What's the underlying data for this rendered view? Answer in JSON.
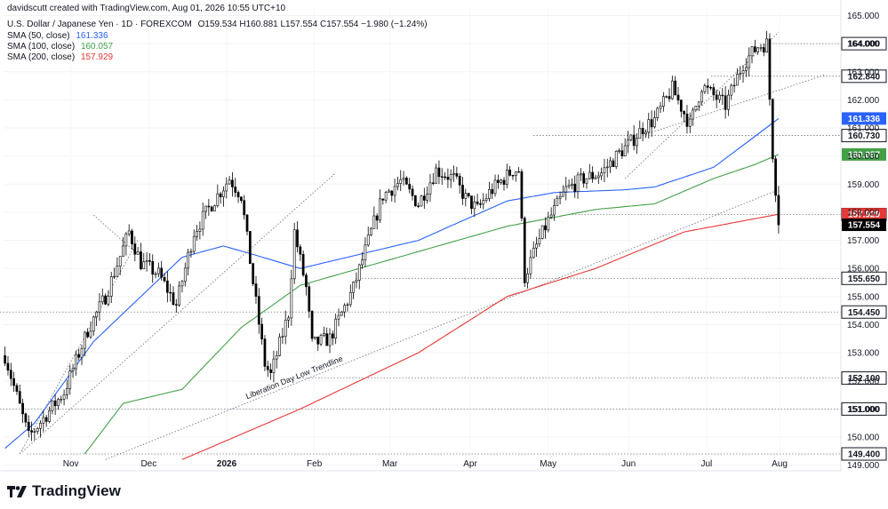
{
  "header": {
    "credit": "davidscutt created with TradingView.com, Aug 01, 2026 10:55 UTC+10",
    "instrument": "U.S. Dollar / Japanese Yen · 1D · FOREXCOM",
    "ohlc": "O159.534  H160.881  L157.554  C157.554  −1.980 (−1.24%)",
    "sma": [
      {
        "label": "SMA (50, close)",
        "value": "161.336",
        "color": "#2962ff"
      },
      {
        "label": "SMA (100, close)",
        "value": "160.057",
        "color": "#43a047"
      },
      {
        "label": "SMA (200, close)",
        "value": "157.929",
        "color": "#e53935"
      }
    ]
  },
  "logo": {
    "text": "TradingView"
  },
  "chart_data": {
    "type": "candlestick",
    "ylim": [
      148.8,
      165.3
    ],
    "y_ticks": [
      "165.000",
      "164.000",
      "163.000",
      "162.000",
      "161.000",
      "160.000",
      "159.000",
      "158.000",
      "157.000",
      "156.000",
      "155.000",
      "154.000",
      "153.000",
      "152.000",
      "151.000",
      "150.000",
      "149.000"
    ],
    "x_ticks": [
      "Nov",
      "Dec",
      "2026",
      "Feb",
      "Mar",
      "Apr",
      "May",
      "Jun",
      "Jul",
      "Aug"
    ],
    "levels": [
      "164.000",
      "162.840",
      "160.730",
      "157.920",
      "155.650",
      "154.450",
      "152.100",
      "151.000",
      "149.400"
    ],
    "price_label": "157.554",
    "annotation": "Liberation Day Low Trendline",
    "anchors": [
      [
        0,
        152.9
      ],
      [
        8,
        150.0
      ],
      [
        20,
        151.6
      ],
      [
        28,
        153.8
      ],
      [
        34,
        155.0
      ],
      [
        42,
        157.3
      ],
      [
        46,
        156.2
      ],
      [
        52,
        155.8
      ],
      [
        58,
        154.7
      ],
      [
        64,
        157.3
      ],
      [
        70,
        158.3
      ],
      [
        76,
        159.2
      ],
      [
        80,
        158.6
      ],
      [
        84,
        155.5
      ],
      [
        88,
        152.6
      ],
      [
        90,
        152.2
      ],
      [
        96,
        154.4
      ],
      [
        98,
        157.3
      ],
      [
        102,
        155.3
      ],
      [
        104,
        153.3
      ],
      [
        110,
        153.5
      ],
      [
        118,
        155.3
      ],
      [
        124,
        157.3
      ],
      [
        128,
        158.6
      ],
      [
        134,
        159.1
      ],
      [
        140,
        158.3
      ],
      [
        146,
        159.5
      ],
      [
        152,
        159.2
      ],
      [
        156,
        158.5
      ],
      [
        160,
        158.1
      ],
      [
        164,
        158.7
      ],
      [
        168,
        159.1
      ],
      [
        172,
        159.5
      ],
      [
        174,
        159.5
      ],
      [
        176,
        155.7
      ],
      [
        180,
        156.8
      ],
      [
        184,
        157.7
      ],
      [
        190,
        158.8
      ],
      [
        196,
        159.2
      ],
      [
        202,
        159.4
      ],
      [
        208,
        160.1
      ],
      [
        212,
        160.5
      ],
      [
        216,
        161.0
      ],
      [
        220,
        161.3
      ],
      [
        226,
        162.4
      ],
      [
        232,
        161.1
      ],
      [
        236,
        162.5
      ],
      [
        244,
        161.8
      ],
      [
        250,
        163.3
      ],
      [
        255,
        163.9
      ],
      [
        258,
        164.0
      ],
      [
        260,
        160.1
      ],
      [
        262,
        157.6
      ]
    ],
    "sma50": [
      [
        0,
        149.6
      ],
      [
        10,
        150.5
      ],
      [
        30,
        153.4
      ],
      [
        60,
        156.4
      ],
      [
        74,
        156.8
      ],
      [
        84,
        156.5
      ],
      [
        100,
        156.0
      ],
      [
        120,
        156.5
      ],
      [
        140,
        157.0
      ],
      [
        170,
        158.4
      ],
      [
        186,
        158.7
      ],
      [
        210,
        158.8
      ],
      [
        220,
        158.9
      ],
      [
        240,
        159.6
      ],
      [
        254,
        160.7
      ],
      [
        262,
        161.336
      ]
    ],
    "sma100": [
      [
        27,
        149.4
      ],
      [
        40,
        151.2
      ],
      [
        60,
        151.7
      ],
      [
        80,
        153.9
      ],
      [
        100,
        155.4
      ],
      [
        140,
        156.6
      ],
      [
        170,
        157.5
      ],
      [
        200,
        158.1
      ],
      [
        220,
        158.3
      ],
      [
        240,
        159.2
      ],
      [
        254,
        159.7
      ],
      [
        262,
        160.057
      ]
    ],
    "sma200": [
      [
        60,
        149.2
      ],
      [
        100,
        151.0
      ],
      [
        140,
        153.0
      ],
      [
        170,
        155.0
      ],
      [
        200,
        156.0
      ],
      [
        230,
        157.3
      ],
      [
        262,
        157.929
      ]
    ],
    "trendlines": [
      {
        "points": [
          [
            5,
            149.4
          ],
          [
            112,
            159.4
          ]
        ]
      },
      {
        "points": [
          [
            5,
            149.4
          ],
          [
            45,
            157.0
          ]
        ]
      },
      {
        "points": [
          [
            30,
            157.9
          ],
          [
            45,
            156.5
          ]
        ]
      },
      {
        "points": [
          [
            34,
            149.2
          ],
          [
            262,
            158.8
          ]
        ]
      },
      {
        "points": [
          [
            210,
            159.2
          ],
          [
            262,
            164.4
          ]
        ]
      },
      {
        "points": [
          [
            215,
            160.7
          ],
          [
            278,
            162.9
          ]
        ]
      }
    ]
  }
}
